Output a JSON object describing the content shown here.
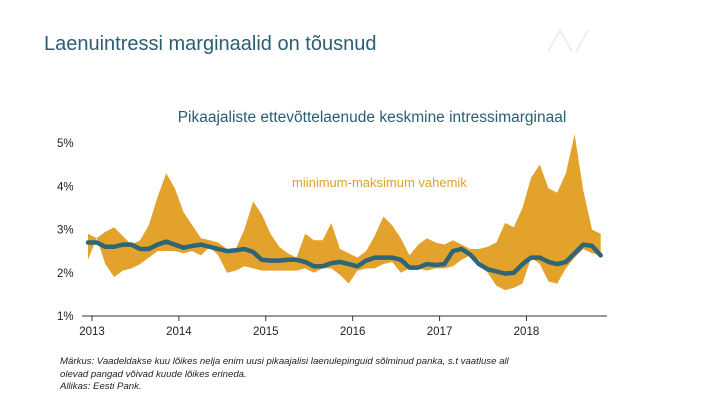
{
  "slide": {
    "title": "Laenuintressi marginaalid on tõusnud"
  },
  "chart_data": {
    "type": "area",
    "title": "Pikaajaliste ettevõttelaenude keskmine intressimarginaal",
    "band_label": "miinimum-maksimum vahemik",
    "y_ticks": [
      "5%",
      "4%",
      "3%",
      "2%",
      "1%"
    ],
    "y_tick_values": [
      5,
      4,
      3,
      2,
      1
    ],
    "ylim": [
      1,
      5
    ],
    "x_ticks": [
      "2013",
      "2014",
      "2015",
      "2016",
      "2017",
      "2018"
    ],
    "x_tick_values": [
      2013.0,
      2014.0,
      2015.0,
      2016.0,
      2017.0,
      2018.0
    ],
    "xlim": [
      2013.0,
      2018.95
    ],
    "colors": {
      "band": "#e3a22c",
      "line": "#2e6577",
      "axis": "#333333"
    },
    "x": [
      2013.0,
      2013.1,
      2013.2,
      2013.3,
      2013.4,
      2013.5,
      2013.6,
      2013.7,
      2013.8,
      2013.9,
      2014.0,
      2014.1,
      2014.2,
      2014.3,
      2014.4,
      2014.5,
      2014.6,
      2014.7,
      2014.8,
      2014.9,
      2015.0,
      2015.1,
      2015.2,
      2015.3,
      2015.4,
      2015.5,
      2015.6,
      2015.7,
      2015.8,
      2015.9,
      2016.0,
      2016.1,
      2016.2,
      2016.3,
      2016.4,
      2016.5,
      2016.6,
      2016.7,
      2016.8,
      2016.9,
      2017.0,
      2017.1,
      2017.2,
      2017.3,
      2017.4,
      2017.5,
      2017.6,
      2017.7,
      2017.8,
      2017.9,
      2018.0,
      2018.1,
      2018.2,
      2018.3,
      2018.4,
      2018.5,
      2018.6,
      2018.7,
      2018.8,
      2018.9
    ],
    "series": [
      {
        "name": "maksimum",
        "values": [
          2.9,
          2.8,
          2.95,
          3.05,
          2.85,
          2.65,
          2.75,
          3.1,
          3.75,
          4.3,
          3.95,
          3.4,
          3.1,
          2.8,
          2.75,
          2.7,
          2.55,
          2.55,
          3.0,
          3.65,
          3.35,
          2.9,
          2.6,
          2.45,
          2.35,
          2.9,
          2.75,
          2.75,
          3.15,
          2.55,
          2.45,
          2.35,
          2.5,
          2.85,
          3.3,
          3.1,
          2.8,
          2.4,
          2.65,
          2.8,
          2.7,
          2.65,
          2.75,
          2.65,
          2.55,
          2.55,
          2.6,
          2.7,
          3.15,
          3.05,
          3.5,
          4.2,
          4.5,
          3.95,
          3.85,
          4.3,
          5.2,
          3.9,
          3.0,
          2.9
        ]
      },
      {
        "name": "miinimum",
        "values": [
          2.3,
          2.8,
          2.2,
          1.9,
          2.05,
          2.1,
          2.2,
          2.35,
          2.5,
          2.5,
          2.5,
          2.45,
          2.5,
          2.4,
          2.6,
          2.4,
          2.0,
          2.05,
          2.15,
          2.1,
          2.05,
          2.05,
          2.05,
          2.05,
          2.05,
          2.1,
          2.0,
          2.1,
          2.1,
          1.95,
          1.75,
          2.05,
          2.1,
          2.1,
          2.2,
          2.25,
          2.0,
          2.1,
          2.1,
          2.05,
          2.1,
          2.1,
          2.15,
          2.3,
          2.4,
          2.3,
          2.0,
          1.7,
          1.6,
          1.65,
          1.75,
          2.35,
          2.2,
          1.8,
          1.75,
          2.1,
          2.35,
          2.55,
          2.45,
          2.4
        ]
      },
      {
        "name": "keskmine",
        "values": [
          2.7,
          2.7,
          2.6,
          2.6,
          2.65,
          2.65,
          2.55,
          2.55,
          2.65,
          2.72,
          2.65,
          2.58,
          2.62,
          2.65,
          2.6,
          2.55,
          2.5,
          2.52,
          2.55,
          2.48,
          2.3,
          2.28,
          2.28,
          2.3,
          2.3,
          2.25,
          2.15,
          2.15,
          2.22,
          2.25,
          2.2,
          2.15,
          2.28,
          2.35,
          2.35,
          2.35,
          2.3,
          2.12,
          2.12,
          2.2,
          2.18,
          2.2,
          2.5,
          2.55,
          2.42,
          2.2,
          2.08,
          2.03,
          1.98,
          2.0,
          2.2,
          2.35,
          2.35,
          2.25,
          2.2,
          2.25,
          2.45,
          2.65,
          2.62,
          2.4
        ]
      }
    ]
  },
  "notes": {
    "line1": "Märkus: Vaadeldakse kuu lõikes nelja enim uusi pikaajalisi laenulepinguid sõlminud panka, s.t vaatluse all",
    "line2": "olevad pangad võivad kuude lõikes erineda.",
    "line3": "Allikas: Eesti Pank."
  }
}
